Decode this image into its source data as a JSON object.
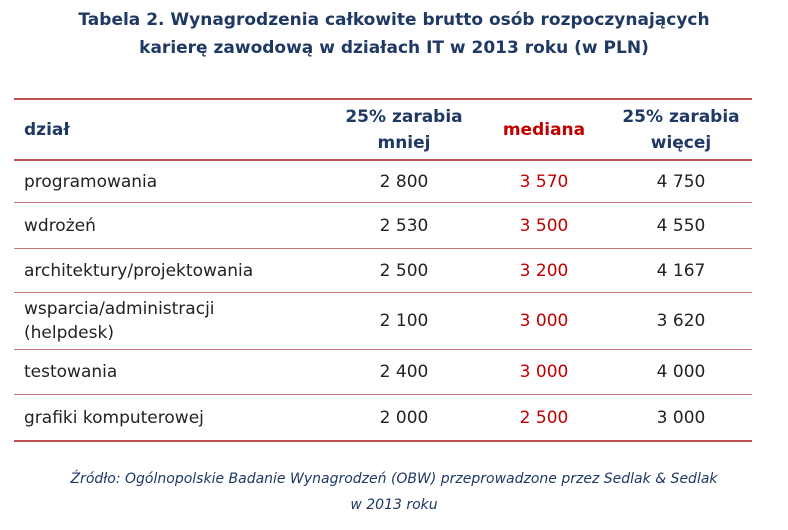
{
  "title": {
    "line1": "Tabela 2. Wynagrodzenia całkowite brutto osób rozpoczynających",
    "line2": "karierę zawodową w działach IT w 2013 roku (w PLN)"
  },
  "table": {
    "headers": {
      "dept": "dział",
      "low_line1": "25% zarabia",
      "low_line2": "mniej",
      "median": "mediana",
      "high_line1": "25% zarabia",
      "high_line2": "więcej"
    },
    "rows": [
      {
        "dept_line1": "programowania",
        "dept_line2": "",
        "low": "2 800",
        "median": "3 570",
        "high": "4 750"
      },
      {
        "dept_line1": "wdrożeń",
        "dept_line2": "",
        "low": "2 530",
        "median": "3 500",
        "high": "4 550"
      },
      {
        "dept_line1": "architektury/projektowania",
        "dept_line2": "",
        "low": "2 500",
        "median": "3 200",
        "high": "4 167"
      },
      {
        "dept_line1": "wsparcia/administracji",
        "dept_line2": "(helpdesk)",
        "low": "2 100",
        "median": "3 000",
        "high": "3 620"
      },
      {
        "dept_line1": "testowania",
        "dept_line2": "",
        "low": "2 400",
        "median": "3 000",
        "high": "4 000"
      },
      {
        "dept_line1": "grafiki komputerowej",
        "dept_line2": "",
        "low": "2 000",
        "median": "2 500",
        "high": "3 000"
      }
    ]
  },
  "source": {
    "line1": "Źródło: Ogólnopolskie Badanie Wynagrodzeń (OBW) przeprowadzone przez  Sedlak & Sedlak",
    "line2": "w 2013 roku"
  },
  "colors": {
    "title": "#1f3864",
    "median": "#c00000",
    "rule": "#c0504d",
    "text": "#222222"
  }
}
